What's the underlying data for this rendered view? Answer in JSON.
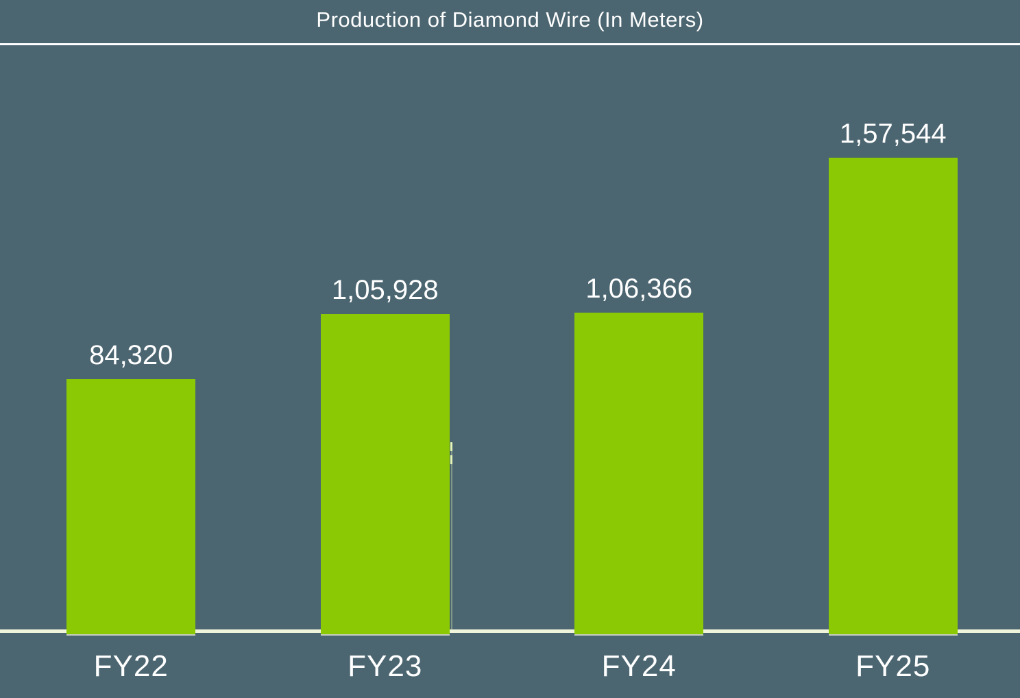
{
  "chart_data": {
    "type": "bar",
    "title": "Production of Diamond Wire (In Meters)",
    "categories": [
      "FY22",
      "FY23",
      "FY24",
      "FY25"
    ],
    "values": [
      84320,
      105928,
      106366,
      157544
    ],
    "value_labels": [
      "84,320",
      "1,05,928",
      "1,06,366",
      "1,57,544"
    ],
    "xlabel": "",
    "ylabel": "",
    "ylim": [
      0,
      195000
    ],
    "grid": false,
    "legend": "none",
    "colors": {
      "background": "#4C6671",
      "bar": "#8AC903",
      "text": "#FFFFFF",
      "axis_line": "#EFF4DB",
      "title_rule": "#FFFFFF"
    }
  }
}
